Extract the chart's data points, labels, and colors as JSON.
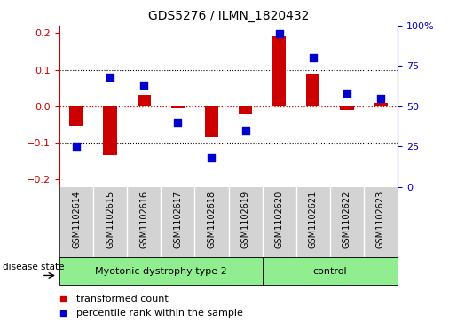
{
  "title": "GDS5276 / ILMN_1820432",
  "samples": [
    "GSM1102614",
    "GSM1102615",
    "GSM1102616",
    "GSM1102617",
    "GSM1102618",
    "GSM1102619",
    "GSM1102620",
    "GSM1102621",
    "GSM1102622",
    "GSM1102623"
  ],
  "red_values": [
    -0.055,
    -0.135,
    0.03,
    -0.005,
    -0.085,
    -0.02,
    0.19,
    0.09,
    -0.01,
    0.01
  ],
  "blue_values": [
    25,
    68,
    63,
    40,
    18,
    35,
    95,
    80,
    58,
    55
  ],
  "group1_samples": 6,
  "group2_samples": 4,
  "group1_label": "Myotonic dystrophy type 2",
  "group2_label": "control",
  "group_color": "#90EE90",
  "sample_bg_color": "#D3D3D3",
  "ylim_left": [
    -0.22,
    0.22
  ],
  "ylim_right": [
    0,
    100
  ],
  "yticks_left": [
    -0.2,
    -0.1,
    0.0,
    0.1,
    0.2
  ],
  "yticks_right": [
    0,
    25,
    50,
    75,
    100
  ],
  "yticklabels_right": [
    "0",
    "25",
    "50",
    "75",
    "100%"
  ],
  "hlines_dotted": [
    -0.1,
    0.1
  ],
  "hline_red": 0.0,
  "red_color": "#CC0000",
  "blue_color": "#0000CC",
  "bar_width": 0.4,
  "dot_size": 35,
  "legend_red": "transformed count",
  "legend_blue": "percentile rank within the sample",
  "disease_state_label": "disease state",
  "title_fontsize": 10,
  "tick_fontsize": 8,
  "label_fontsize": 7,
  "legend_fontsize": 8
}
